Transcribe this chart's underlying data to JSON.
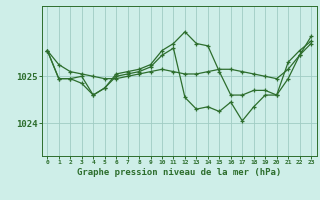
{
  "title": "Graphe pression niveau de la mer (hPa)",
  "background_color": "#ceeee8",
  "grid_color": "#a0ccc4",
  "line_color": "#2d6e2d",
  "x_labels": [
    "0",
    "1",
    "2",
    "3",
    "4",
    "5",
    "6",
    "7",
    "8",
    "9",
    "10",
    "11",
    "12",
    "13",
    "14",
    "15",
    "16",
    "17",
    "18",
    "19",
    "20",
    "21",
    "22",
    "23"
  ],
  "ylim": [
    1023.3,
    1026.5
  ],
  "yticks": [
    1024,
    1025
  ],
  "series": [
    [
      1025.55,
      1025.25,
      1025.1,
      1025.05,
      1025.0,
      1024.95,
      1024.95,
      1025.0,
      1025.05,
      1025.1,
      1025.15,
      1025.1,
      1025.05,
      1025.05,
      1025.1,
      1025.15,
      1025.15,
      1025.1,
      1025.05,
      1025.0,
      1024.95,
      1025.15,
      1025.45,
      1025.7
    ],
    [
      1025.55,
      1024.95,
      1024.95,
      1024.85,
      1024.6,
      1024.75,
      1025.0,
      1025.05,
      1025.1,
      1025.2,
      1025.45,
      1025.6,
      1024.55,
      1024.3,
      1024.35,
      1024.25,
      1024.45,
      1024.05,
      1024.35,
      1024.6,
      1024.6,
      1025.3,
      1025.55,
      1025.75
    ],
    [
      1025.55,
      1024.95,
      1024.95,
      1025.0,
      1024.6,
      1024.75,
      1025.05,
      1025.1,
      1025.15,
      1025.25,
      1025.55,
      1025.7,
      1025.95,
      1025.7,
      1025.65,
      1025.1,
      1024.6,
      1024.6,
      1024.7,
      1024.7,
      1024.6,
      1024.95,
      1025.45,
      1025.85
    ]
  ]
}
